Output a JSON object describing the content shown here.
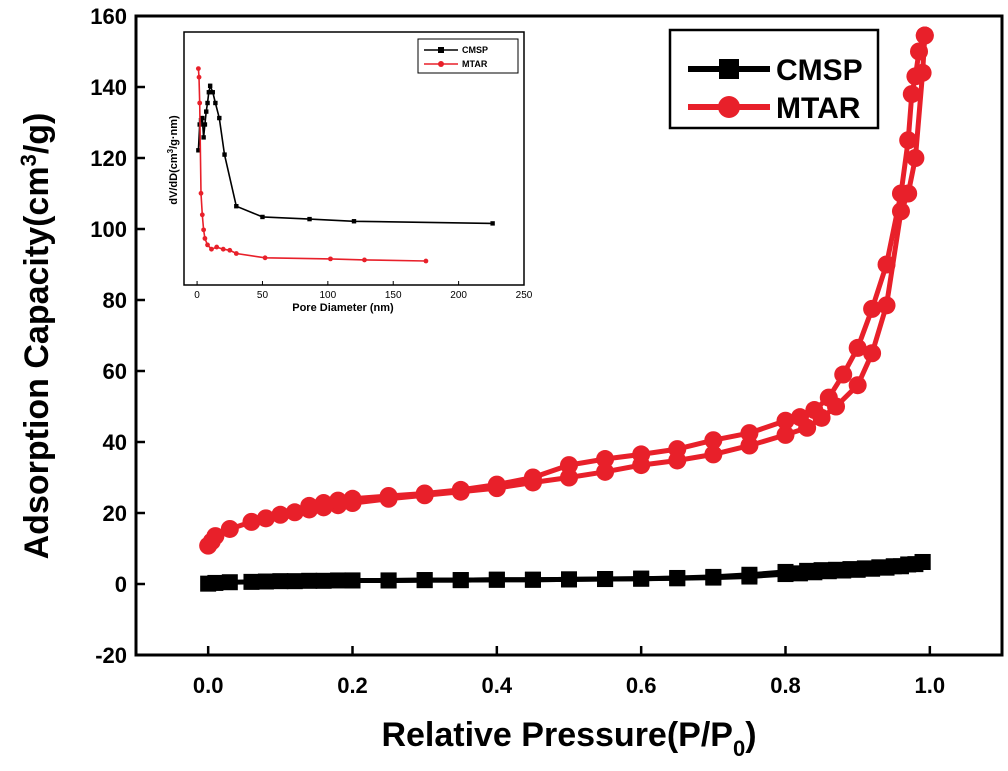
{
  "chart_data": [
    {
      "name": "main",
      "type": "line",
      "xlabel_main": "Relative Pressure(P/P",
      "xlabel_sub": "0",
      "xlabel_close": ")",
      "ylabel_main": "Adsorption Capacity(cm",
      "ylabel_sup": "3",
      "ylabel_close": "/g)",
      "xlim": [
        -0.1,
        1.1
      ],
      "ylim": [
        -20,
        160
      ],
      "xticks": [
        0.0,
        0.2,
        0.4,
        0.6,
        0.8,
        1.0
      ],
      "xtick_labels": [
        "0.0",
        "0.2",
        "0.4",
        "0.6",
        "0.8",
        "1.0"
      ],
      "yticks": [
        -20,
        0,
        20,
        40,
        60,
        80,
        100,
        120,
        140,
        160
      ],
      "ytick_labels": [
        "-20",
        "0",
        "20",
        "40",
        "60",
        "80",
        "100",
        "120",
        "140",
        "160"
      ],
      "grid": false,
      "legend_position": "top-right",
      "series": [
        {
          "name": "CMSP",
          "color": "#000000",
          "marker": "square",
          "branches": [
            {
              "branch": "adsorption",
              "x": [
                0.0,
                0.01,
                0.03,
                0.06,
                0.08,
                0.1,
                0.12,
                0.14,
                0.16,
                0.18,
                0.2,
                0.25,
                0.3,
                0.35,
                0.4,
                0.45,
                0.5,
                0.55,
                0.6,
                0.65,
                0.7,
                0.75,
                0.8,
                0.82,
                0.84,
                0.86,
                0.88,
                0.9,
                0.92,
                0.94,
                0.96,
                0.98,
                0.99
              ],
              "y": [
                0.1,
                0.3,
                0.5,
                0.6,
                0.7,
                0.8,
                0.8,
                0.9,
                0.9,
                1.0,
                1.0,
                1.0,
                1.1,
                1.1,
                1.2,
                1.2,
                1.3,
                1.4,
                1.5,
                1.6,
                1.8,
                2.1,
                2.8,
                3.0,
                3.3,
                3.6,
                3.8,
                4.0,
                4.3,
                4.6,
                5.0,
                5.6,
                6.2
              ]
            },
            {
              "branch": "desorption",
              "x": [
                0.99,
                0.97,
                0.95,
                0.93,
                0.91,
                0.89,
                0.87,
                0.85,
                0.83,
                0.8,
                0.75,
                0.7,
                0.65,
                0.6,
                0.55,
                0.5,
                0.45,
                0.4,
                0.35,
                0.3,
                0.25,
                0.2
              ],
              "y": [
                6.2,
                5.5,
                5.0,
                4.7,
                4.4,
                4.2,
                4.0,
                3.9,
                3.7,
                3.4,
                2.6,
                2.0,
                1.7,
                1.5,
                1.4,
                1.3,
                1.2,
                1.2,
                1.1,
                1.1,
                1.0,
                1.0
              ]
            }
          ]
        },
        {
          "name": "MTAR",
          "color": "#e8202a",
          "marker": "circle",
          "branches": [
            {
              "branch": "adsorption",
              "x": [
                0.0,
                0.005,
                0.01,
                0.03,
                0.06,
                0.08,
                0.1,
                0.12,
                0.14,
                0.16,
                0.18,
                0.2,
                0.25,
                0.3,
                0.35,
                0.4,
                0.45,
                0.5,
                0.55,
                0.6,
                0.65,
                0.7,
                0.75,
                0.8,
                0.83,
                0.85,
                0.87,
                0.9,
                0.92,
                0.94,
                0.96,
                0.97,
                0.98,
                0.99,
                0.993
              ],
              "y": [
                10.8,
                12,
                13.5,
                15.5,
                17.5,
                18.5,
                19.5,
                20.2,
                21,
                21.6,
                22.2,
                22.8,
                24,
                25,
                26,
                27,
                28.6,
                30,
                31.6,
                33.5,
                34.8,
                36.5,
                39,
                42,
                44,
                46.8,
                50,
                56,
                65,
                78.5,
                105,
                110,
                120,
                144,
                154.5
              ]
            },
            {
              "branch": "desorption",
              "x": [
                0.993,
                0.985,
                0.98,
                0.975,
                0.97,
                0.96,
                0.94,
                0.92,
                0.9,
                0.88,
                0.86,
                0.84,
                0.82,
                0.8,
                0.75,
                0.7,
                0.65,
                0.6,
                0.55,
                0.5,
                0.45,
                0.4,
                0.35,
                0.3,
                0.25,
                0.2,
                0.18,
                0.16,
                0.14
              ],
              "y": [
                154.5,
                150,
                143,
                138,
                125,
                110,
                90,
                77.5,
                66.5,
                59,
                52.5,
                49,
                47,
                46,
                42.5,
                40.5,
                38,
                36.5,
                35.2,
                33.5,
                30,
                28,
                26.5,
                25.5,
                24.8,
                24,
                23.5,
                22.8,
                22
              ]
            }
          ]
        }
      ]
    },
    {
      "name": "inset",
      "type": "line",
      "xlabel": "Pore Diameter (nm)",
      "ylabel_main": "dV/dD(cm",
      "ylabel_sup": "3",
      "ylabel_close": "/g·nm)",
      "xlim": [
        -10,
        250
      ],
      "xticks": [
        0,
        50,
        100,
        150,
        200,
        250
      ],
      "xtick_labels": [
        "0",
        "50",
        "100",
        "150",
        "200",
        "250"
      ],
      "y_relative_range": [
        0,
        100
      ],
      "legend_position": "top-right",
      "series": [
        {
          "name": "CMSP",
          "color": "#000000",
          "marker": "square",
          "x": [
            1,
            2,
            3,
            4,
            5,
            6,
            7,
            8,
            9,
            10,
            12,
            14,
            17,
            21,
            30,
            50,
            86,
            120,
            226
          ],
          "y": [
            58,
            70,
            72,
            73,
            64,
            70,
            76,
            80,
            85,
            88,
            85,
            80,
            73,
            56,
            32,
            27,
            26,
            25,
            24
          ]
        },
        {
          "name": "MTAR",
          "color": "#e8202a",
          "marker": "circle",
          "x": [
            1,
            1.5,
            2,
            3,
            4,
            5,
            6,
            8,
            11,
            15,
            20,
            25,
            30,
            52,
            102,
            128,
            175
          ],
          "y": [
            96,
            92,
            80,
            38,
            28,
            21,
            17,
            14,
            12,
            13,
            12,
            11.5,
            10,
            8,
            7.5,
            7,
            6.5
          ]
        }
      ]
    }
  ]
}
